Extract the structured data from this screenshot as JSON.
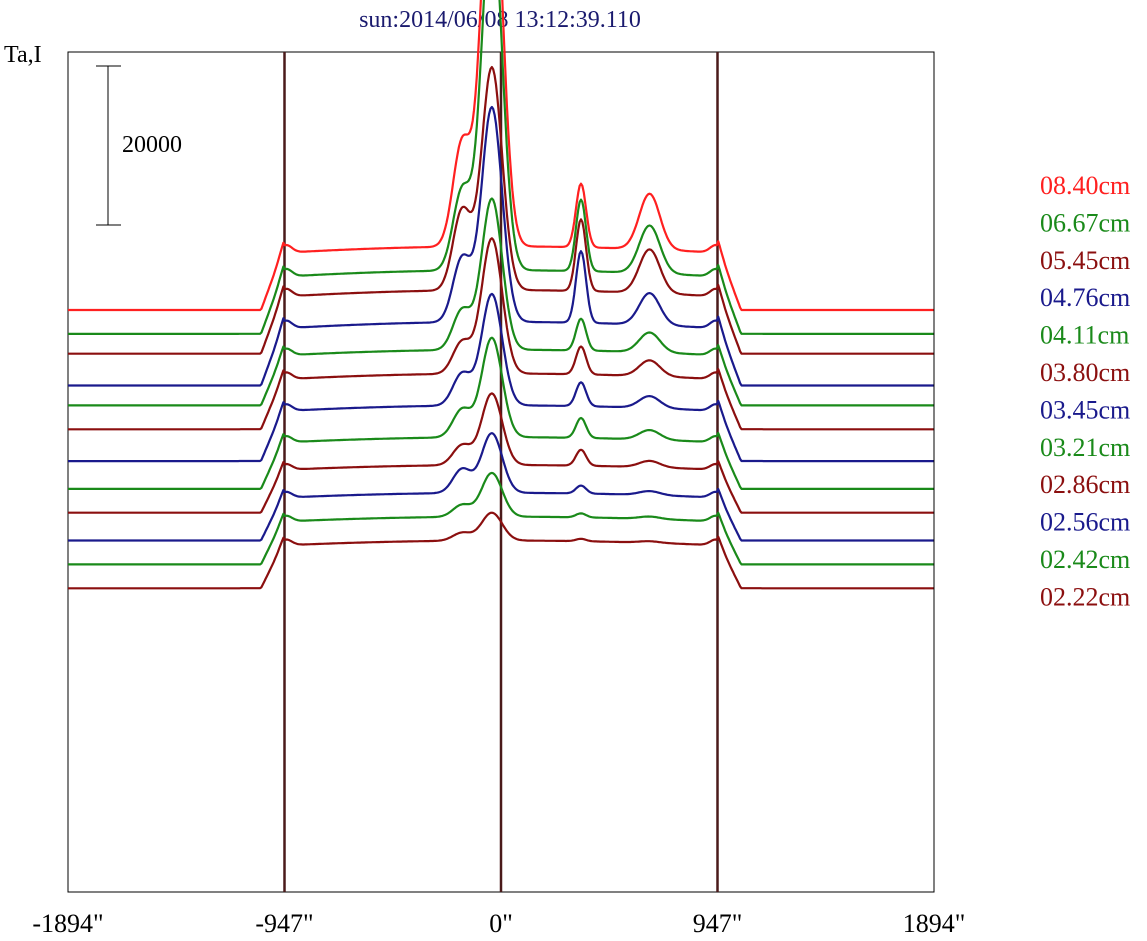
{
  "chart_data": {
    "type": "line",
    "title": "sun:2014/06/08 13:12:39.110",
    "ylabel": "Ta,I",
    "scale_bar_label": "20000",
    "x_ticks": [
      "-1894\"",
      "-947\"",
      "0\"",
      "947\"",
      "1894\""
    ],
    "x_tick_values": [
      -1894,
      -947,
      0,
      947,
      1894
    ],
    "xlim": [
      -1894,
      1894
    ],
    "reference_lines_x": [
      -947,
      0,
      947
    ],
    "legend_placement": "right",
    "colors": {
      "red": "#ff2020",
      "green": "#1a8a1a",
      "maroon": "#8b0f0f",
      "navy": "#1a1a8c",
      "axis": "#000000",
      "refline": "#4a1a1a",
      "title": "#1a1a6e"
    },
    "legend": [
      {
        "label": "08.40cm",
        "color": "#ff2020"
      },
      {
        "label": "06.67cm",
        "color": "#1a8a1a"
      },
      {
        "label": "05.45cm",
        "color": "#8b0f0f"
      },
      {
        "label": "04.76cm",
        "color": "#1a1a8c"
      },
      {
        "label": "04.11cm",
        "color": "#1a8a1a"
      },
      {
        "label": "03.80cm",
        "color": "#8b0f0f"
      },
      {
        "label": "03.45cm",
        "color": "#1a1a8c"
      },
      {
        "label": "03.21cm",
        "color": "#1a8a1a"
      },
      {
        "label": "02.86cm",
        "color": "#8b0f0f"
      },
      {
        "label": "02.56cm",
        "color": "#1a1a8c"
      },
      {
        "label": "02.42cm",
        "color": "#1a8a1a"
      },
      {
        "label": "02.22cm",
        "color": "#8b0f0f"
      }
    ],
    "series": [
      {
        "color": "#ff2020",
        "baseline": 0,
        "plateau": 8000,
        "peak": 52000,
        "fil": 13000,
        "ar1": 8000,
        "ar2": 7000
      },
      {
        "color": "#1a8a1a",
        "baseline": -3000,
        "plateau": 8000,
        "peak": 45000,
        "fil": 10000,
        "ar1": 9000,
        "ar2": 6000
      },
      {
        "color": "#8b0f0f",
        "baseline": -5500,
        "plateau": 8000,
        "peak": 28000,
        "fil": 10000,
        "ar1": 9000,
        "ar2": 5500
      },
      {
        "color": "#1a1a8c",
        "baseline": -9500,
        "plateau": 8000,
        "peak": 27000,
        "fil": 8000,
        "ar1": 9000,
        "ar2": 4000
      },
      {
        "color": "#1a8a1a",
        "baseline": -12000,
        "plateau": 7000,
        "peak": 19000,
        "fil": 5000,
        "ar1": 4000,
        "ar2": 2500
      },
      {
        "color": "#8b0f0f",
        "baseline": -15000,
        "plateau": 7000,
        "peak": 17000,
        "fil": 4000,
        "ar1": 3500,
        "ar2": 2000
      },
      {
        "color": "#1a1a8c",
        "baseline": -19000,
        "plateau": 7000,
        "peak": 14000,
        "fil": 4000,
        "ar1": 3000,
        "ar2": 1500
      },
      {
        "color": "#1a8a1a",
        "baseline": -22500,
        "plateau": 6500,
        "peak": 12500,
        "fil": 3500,
        "ar1": 2500,
        "ar2": 1200
      },
      {
        "color": "#8b0f0f",
        "baseline": -25500,
        "plateau": 6000,
        "peak": 9000,
        "fil": 2500,
        "ar1": 2000,
        "ar2": 800
      },
      {
        "color": "#1a1a8c",
        "baseline": -29000,
        "plateau": 6000,
        "peak": 7500,
        "fil": 3000,
        "ar1": 1000,
        "ar2": 500
      },
      {
        "color": "#1a8a1a",
        "baseline": -32000,
        "plateau": 6000,
        "peak": 5500,
        "fil": 1500,
        "ar1": 500,
        "ar2": 300
      },
      {
        "color": "#8b0f0f",
        "baseline": -35000,
        "plateau": 6000,
        "peak": 3500,
        "fil": 1000,
        "ar1": 300,
        "ar2": 200
      }
    ]
  }
}
